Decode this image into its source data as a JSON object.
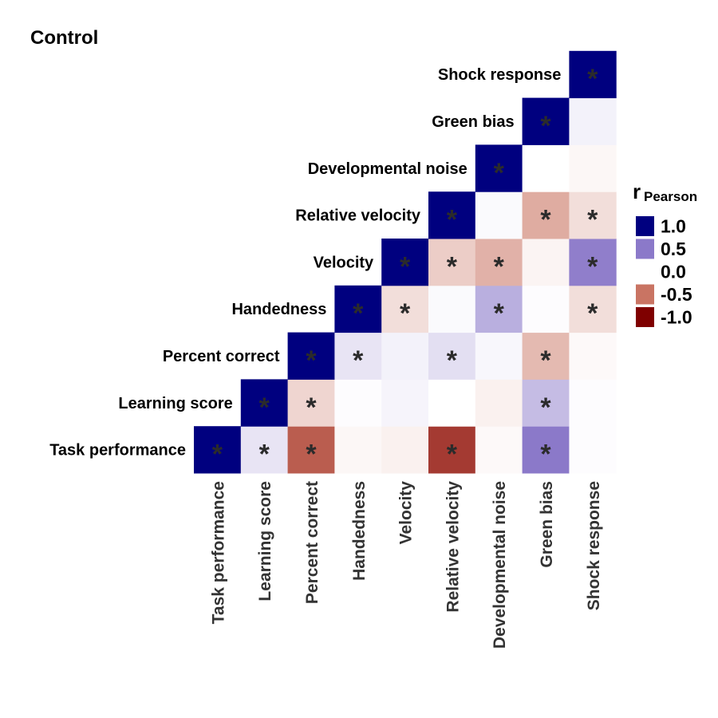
{
  "chart_data": {
    "type": "heatmap",
    "title": "Control",
    "variables": [
      "Task performance",
      "Learning score",
      "Percent correct",
      "Handedness",
      "Velocity",
      "Relative velocity",
      "Developmental noise",
      "Green bias",
      "Shock response"
    ],
    "lower_triangle": true,
    "cells": [
      {
        "row": 0,
        "col": 0,
        "r": 1.0,
        "sig": true
      },
      {
        "row": 0,
        "col": 1,
        "r": 0.1,
        "sig": true
      },
      {
        "row": 0,
        "col": 2,
        "r": -0.6,
        "sig": true
      },
      {
        "row": 0,
        "col": 3,
        "r": -0.03,
        "sig": false
      },
      {
        "row": 0,
        "col": 4,
        "r": -0.05,
        "sig": false
      },
      {
        "row": 0,
        "col": 5,
        "r": -0.75,
        "sig": true
      },
      {
        "row": 0,
        "col": 6,
        "r": -0.02,
        "sig": false
      },
      {
        "row": 0,
        "col": 7,
        "r": 0.5,
        "sig": true
      },
      {
        "row": 0,
        "col": 8,
        "r": 0.01,
        "sig": false
      },
      {
        "row": 1,
        "col": 1,
        "r": 1.0,
        "sig": true
      },
      {
        "row": 1,
        "col": 2,
        "r": -0.15,
        "sig": true
      },
      {
        "row": 1,
        "col": 3,
        "r": 0.01,
        "sig": false
      },
      {
        "row": 1,
        "col": 4,
        "r": 0.04,
        "sig": false
      },
      {
        "row": 1,
        "col": 5,
        "r": 0.0,
        "sig": false
      },
      {
        "row": 1,
        "col": 6,
        "r": -0.05,
        "sig": false
      },
      {
        "row": 1,
        "col": 7,
        "r": 0.25,
        "sig": true
      },
      {
        "row": 1,
        "col": 8,
        "r": 0.01,
        "sig": false
      },
      {
        "row": 2,
        "col": 2,
        "r": 1.0,
        "sig": true
      },
      {
        "row": 2,
        "col": 3,
        "r": 0.1,
        "sig": true
      },
      {
        "row": 2,
        "col": 4,
        "r": 0.05,
        "sig": false
      },
      {
        "row": 2,
        "col": 5,
        "r": 0.12,
        "sig": true
      },
      {
        "row": 2,
        "col": 6,
        "r": 0.03,
        "sig": false
      },
      {
        "row": 2,
        "col": 7,
        "r": -0.25,
        "sig": true
      },
      {
        "row": 2,
        "col": 8,
        "r": -0.02,
        "sig": false
      },
      {
        "row": 3,
        "col": 3,
        "r": 1.0,
        "sig": true
      },
      {
        "row": 3,
        "col": 4,
        "r": -0.12,
        "sig": true
      },
      {
        "row": 3,
        "col": 5,
        "r": 0.02,
        "sig": false
      },
      {
        "row": 3,
        "col": 6,
        "r": 0.3,
        "sig": true
      },
      {
        "row": 3,
        "col": 7,
        "r": 0.01,
        "sig": false
      },
      {
        "row": 3,
        "col": 8,
        "r": -0.12,
        "sig": true
      },
      {
        "row": 4,
        "col": 4,
        "r": 1.0,
        "sig": true
      },
      {
        "row": 4,
        "col": 5,
        "r": -0.18,
        "sig": true
      },
      {
        "row": 4,
        "col": 6,
        "r": -0.28,
        "sig": true
      },
      {
        "row": 4,
        "col": 7,
        "r": -0.04,
        "sig": false
      },
      {
        "row": 4,
        "col": 8,
        "r": 0.48,
        "sig": true
      },
      {
        "row": 5,
        "col": 5,
        "r": 1.0,
        "sig": true
      },
      {
        "row": 5,
        "col": 6,
        "r": 0.02,
        "sig": false
      },
      {
        "row": 5,
        "col": 7,
        "r": -0.3,
        "sig": true
      },
      {
        "row": 5,
        "col": 8,
        "r": -0.12,
        "sig": true
      },
      {
        "row": 6,
        "col": 6,
        "r": 1.0,
        "sig": true
      },
      {
        "row": 6,
        "col": 7,
        "r": 0.0,
        "sig": false
      },
      {
        "row": 6,
        "col": 8,
        "r": -0.03,
        "sig": false
      },
      {
        "row": 7,
        "col": 7,
        "r": 1.0,
        "sig": true
      },
      {
        "row": 7,
        "col": 8,
        "r": 0.05,
        "sig": false
      },
      {
        "row": 8,
        "col": 8,
        "r": 1.0,
        "sig": true
      }
    ],
    "significance_marker": "*",
    "legend": {
      "title": "r",
      "subscript": "Pearson",
      "placement": "right",
      "breaks": [
        1.0,
        0.5,
        0.0,
        -0.5,
        -1.0
      ],
      "labels": [
        "1.0",
        "0.5",
        "0.0",
        "-0.5",
        "-1.0"
      ]
    },
    "colors": {
      "positive": "#00007f",
      "mid_positive": "#8b79c9",
      "zero": "#ffffff",
      "mid_negative": "#c97463",
      "negative": "#7f0000",
      "star": "#2b2b2b"
    }
  }
}
